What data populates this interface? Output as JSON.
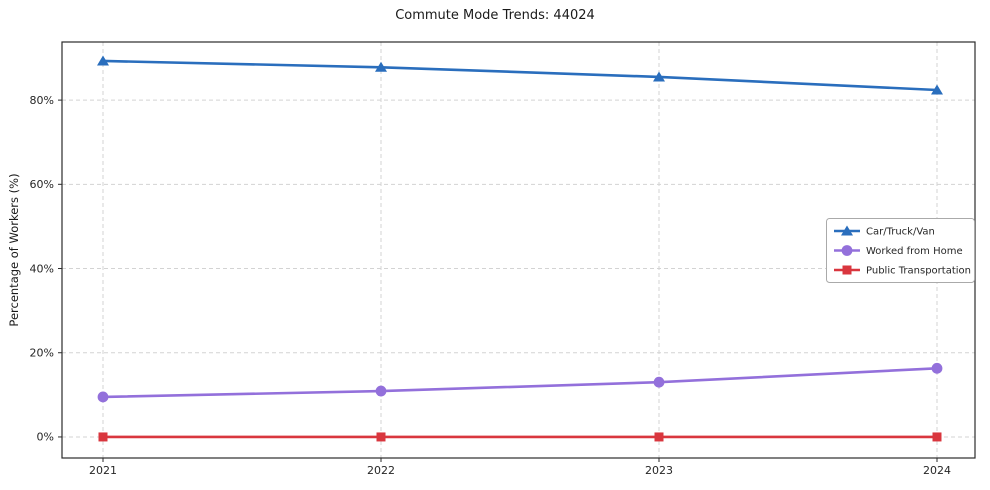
{
  "title": "Commute Mode Trends: 44024",
  "chart_data": {
    "type": "line",
    "title": "Commute Mode Trends: 44024",
    "xlabel": "",
    "ylabel": "Percentage of Workers (%)",
    "categories": [
      2021,
      2022,
      2023,
      2024
    ],
    "x_tick_labels": [
      "2021",
      "2022",
      "2023",
      "2024"
    ],
    "y_ticks": [
      0,
      20,
      40,
      60,
      80
    ],
    "y_tick_labels": [
      "0%",
      "20%",
      "40%",
      "60%",
      "80%"
    ],
    "ylim": [
      -5,
      93.8
    ],
    "grid": true,
    "grid_style": "dashed",
    "legend_position": "center right",
    "series": [
      {
        "name": "Car/Truck/Van",
        "color": "#2a6ebd",
        "marker": "triangle",
        "values": [
          89.3,
          87.8,
          85.5,
          82.4
        ]
      },
      {
        "name": "Worked from Home",
        "color": "#9370db",
        "marker": "circle",
        "values": [
          9.5,
          10.9,
          13.0,
          16.3
        ]
      },
      {
        "name": "Public Transportation",
        "color": "#d9363e",
        "marker": "square",
        "values": [
          0,
          0,
          0,
          0
        ]
      }
    ]
  }
}
